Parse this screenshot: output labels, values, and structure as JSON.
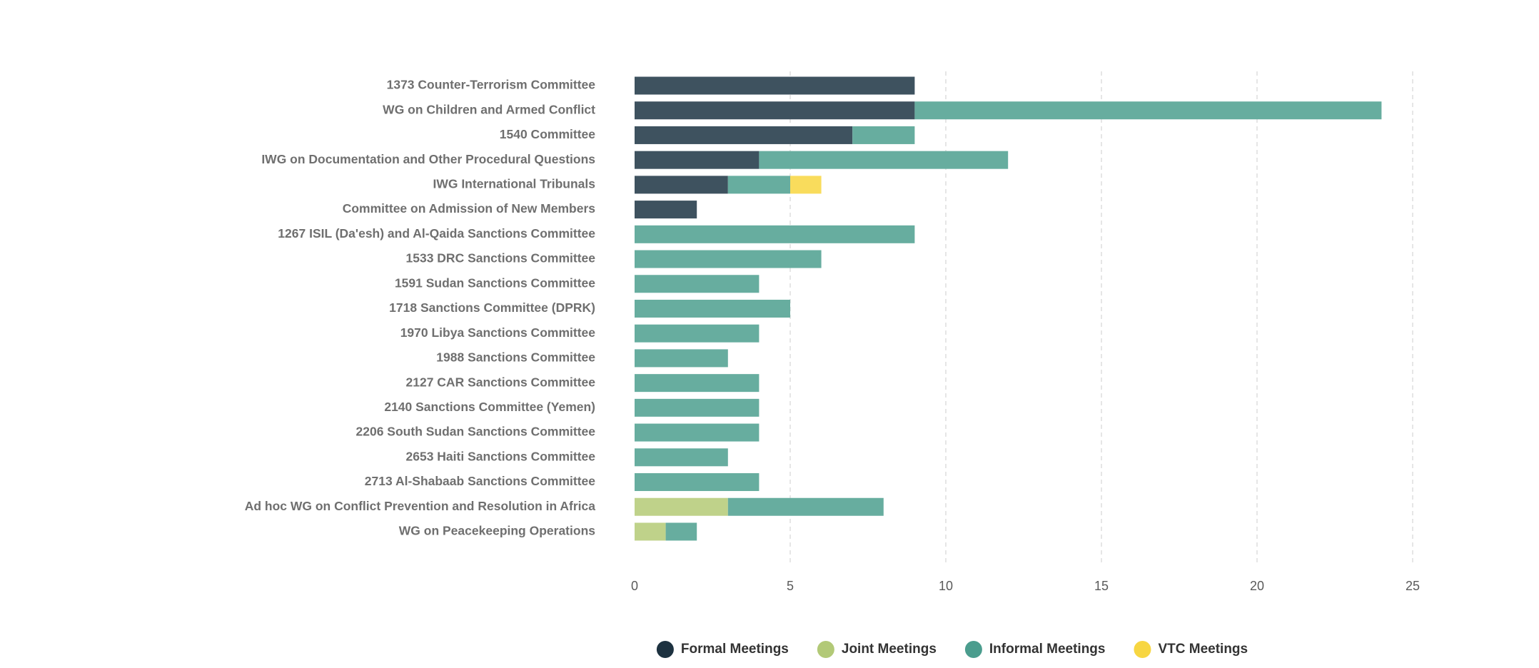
{
  "chart_data": {
    "type": "bar",
    "orientation": "horizontal",
    "stacked": true,
    "title": "",
    "xlabel": "",
    "ylabel": "",
    "xlim": [
      0,
      25
    ],
    "ticks": [
      0,
      5,
      10,
      15,
      20,
      25
    ],
    "grid": true,
    "legend_position": "bottom-center",
    "categories": [
      "1373 Counter-Terrorism Committee",
      "WG on Children and Armed Conflict",
      "1540 Committee",
      "IWG on Documentation and Other Procedural Questions",
      "IWG International Tribunals",
      "Committee on Admission of New Members",
      "1267 ISIL (Da'esh) and Al-Qaida Sanctions Committee",
      "1533 DRC Sanctions Committee",
      "1591 Sudan Sanctions Committee",
      "1718 Sanctions Committee (DPRK)",
      "1970 Libya Sanctions Committee",
      "1988 Sanctions Committee",
      "2127 CAR Sanctions Committee",
      "2140 Sanctions Committee (Yemen)",
      "2206 South Sudan Sanctions Committee",
      "2653 Haiti Sanctions Committee",
      "2713 Al-Shabaab Sanctions Committee",
      "Ad hoc WG on Conflict Prevention and Resolution in Africa",
      "WG on Peacekeeping Operations"
    ],
    "series": [
      {
        "name": "Formal Meetings",
        "color": "#3e525f",
        "legend_color": "#1d3240",
        "values": [
          9,
          9,
          7,
          4,
          3,
          2,
          0,
          0,
          0,
          0,
          0,
          0,
          0,
          0,
          0,
          0,
          0,
          0,
          0
        ]
      },
      {
        "name": "Joint Meetings",
        "color": "#bfd28a",
        "legend_color": "#b2c977",
        "values": [
          0,
          0,
          0,
          0,
          0,
          0,
          0,
          0,
          0,
          0,
          0,
          0,
          0,
          0,
          0,
          0,
          0,
          3,
          1
        ]
      },
      {
        "name": "Informal Meetings",
        "color": "#67ad9f",
        "legend_color": "#4b9d8e",
        "values": [
          0,
          15,
          2,
          8,
          2,
          0,
          9,
          6,
          4,
          5,
          4,
          3,
          4,
          4,
          4,
          3,
          4,
          5,
          1
        ]
      },
      {
        "name": "VTC Meetings",
        "color": "#f9dc5c",
        "legend_color": "#f7d642",
        "values": [
          0,
          0,
          0,
          0,
          1,
          0,
          0,
          0,
          0,
          0,
          0,
          0,
          0,
          0,
          0,
          0,
          0,
          0,
          0
        ]
      }
    ]
  }
}
